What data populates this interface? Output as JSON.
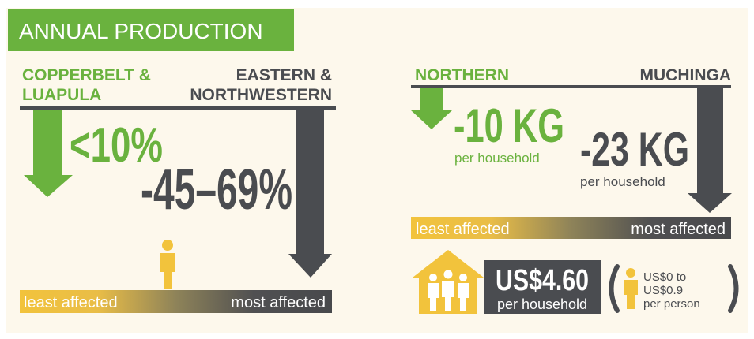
{
  "header": {
    "title": "ANNUAL PRODUCTION"
  },
  "left_panel": {
    "least_region": [
      "COPPERBELT &",
      "LUAPULA"
    ],
    "most_region": [
      "EASTERN &",
      "NORTHWESTERN"
    ],
    "least_value": "<10%",
    "most_value": "-45–69%",
    "scale": {
      "low": "least affected",
      "high": "most affected"
    }
  },
  "right_panel": {
    "least_region": "NORTHERN",
    "most_region": "MUCHINGA",
    "least_value": "-10 KG",
    "least_unit": "per household",
    "most_value": "-23 KG",
    "most_unit": "per household",
    "scale": {
      "low": "least affected",
      "high": "most affected"
    },
    "household_value": "US$4.60",
    "household_unit": "per household",
    "person_note": [
      "US$0 to",
      "US$0.9",
      "per person"
    ]
  }
}
